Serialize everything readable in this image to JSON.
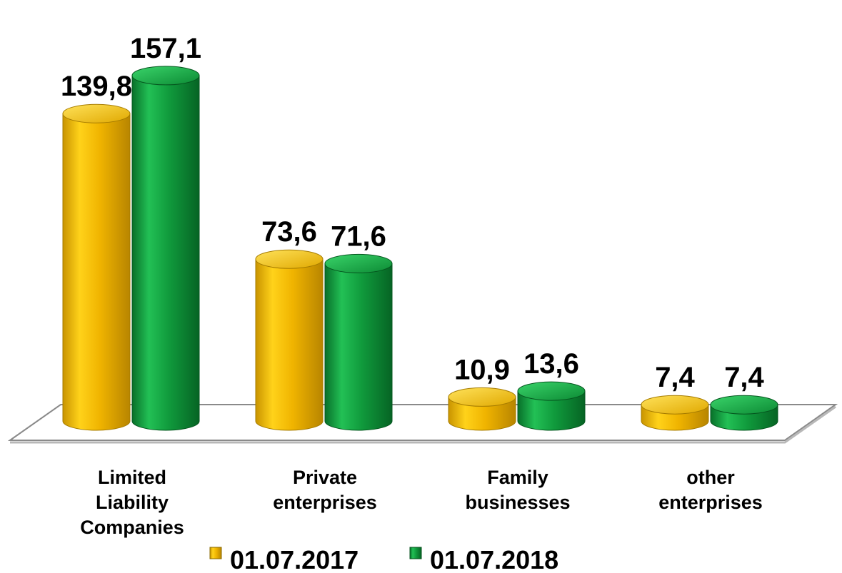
{
  "chart_data": {
    "type": "bar",
    "categories": [
      [
        "Limited",
        "Liability",
        "Companies"
      ],
      [
        "Private",
        "enterprises"
      ],
      [
        "Family",
        "businesses"
      ],
      [
        "other",
        "enterprises"
      ]
    ],
    "series": [
      {
        "name": "01.07.2017",
        "values": [
          139.8,
          73.6,
          10.9,
          7.4
        ],
        "labels": [
          "139,8",
          "73,6",
          "10,9",
          "7,4"
        ],
        "color": "#f0b800"
      },
      {
        "name": "01.07.2018",
        "values": [
          157.1,
          71.6,
          13.6,
          7.4
        ],
        "labels": [
          "157,1",
          "71,6",
          "13,6",
          "7,4"
        ],
        "color": "#10a040"
      }
    ],
    "ylim": [
      0,
      160
    ],
    "grid": false,
    "legend": "bottom"
  },
  "colors": {
    "yellow": "#f0b800",
    "green": "#10a040"
  }
}
